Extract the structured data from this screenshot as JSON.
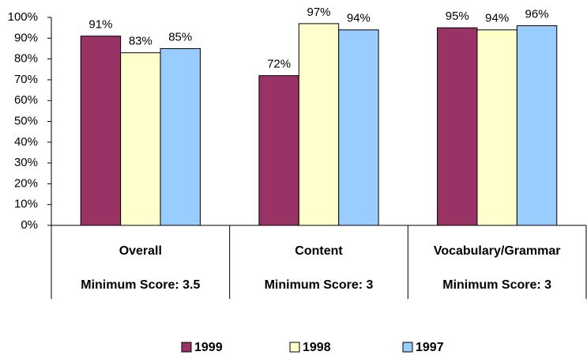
{
  "chart_data": {
    "type": "bar",
    "categories": [
      "Overall",
      "Content",
      "Vocabulary/Grammar"
    ],
    "category_notes": [
      "Minimum Score: 3.5",
      "Minimum Score: 3",
      "Minimum Score: 3"
    ],
    "series": [
      {
        "name": "1999",
        "color": "#993366",
        "values": [
          91,
          72,
          95
        ],
        "value_labels": [
          "91%",
          "72%",
          "95%"
        ]
      },
      {
        "name": "1998",
        "color": "#ffffcc",
        "values": [
          83,
          97,
          94
        ],
        "value_labels": [
          "83%",
          "97%",
          "94%"
        ]
      },
      {
        "name": "1997",
        "color": "#99ccff",
        "values": [
          85,
          94,
          96
        ],
        "value_labels": [
          "85%",
          "94%",
          "96%"
        ]
      }
    ],
    "ylim": [
      0,
      100
    ],
    "yticks": [
      {
        "value": 0,
        "label": "0%"
      },
      {
        "value": 10,
        "label": "10%"
      },
      {
        "value": 20,
        "label": "20%"
      },
      {
        "value": 30,
        "label": "30%"
      },
      {
        "value": 40,
        "label": "40%"
      },
      {
        "value": 50,
        "label": "50%"
      },
      {
        "value": 60,
        "label": "60%"
      },
      {
        "value": 70,
        "label": "70%"
      },
      {
        "value": 80,
        "label": "80%"
      },
      {
        "value": 90,
        "label": "90%"
      },
      {
        "value": 100,
        "label": "100%"
      }
    ],
    "legend": "bottom"
  }
}
